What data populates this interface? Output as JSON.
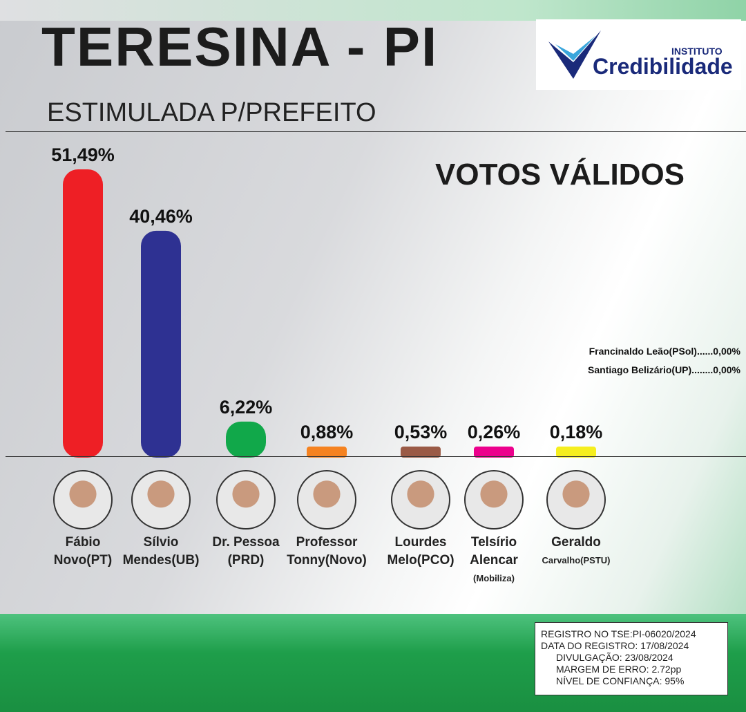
{
  "header": {
    "title": "TERESINA - PI",
    "subtitle": "ESTIMULADA P/PREFEITO",
    "logo_top": "INSTITUTO",
    "logo_main": "Credibilidade",
    "section": "VOTOS VÁLIDOS"
  },
  "minor_candidates": [
    "Francinaldo Leão(PSol)......0,00%",
    "Santiago Belizário(UP)........0,00%"
  ],
  "chart_data": {
    "type": "bar",
    "title": "ESTIMULADA P/PREFEITO - VOTOS VÁLIDOS",
    "ylim": [
      0,
      55
    ],
    "categories": [
      "Fábio Novo(PT)",
      "Sílvio Mendes(UB)",
      "Dr. Pessoa (PRD)",
      "Professor Tonny(Novo)",
      "Lourdes Melo(PCO)",
      "Telsírio Alencar (Mobiliza)",
      "Geraldo Carvalho(PSTU)"
    ],
    "values": [
      51.49,
      40.46,
      6.22,
      0.88,
      0.53,
      0.26,
      0.18
    ],
    "labels": [
      "51,49%",
      "40,46%",
      "6,22%",
      "0,88%",
      "0,53%",
      "0,26%",
      "0,18%"
    ],
    "colors": [
      "#ee1f25",
      "#2e3192",
      "#11a84a",
      "#f58220",
      "#9a5a46",
      "#ec008c",
      "#f5ee1e"
    ]
  },
  "candidates": [
    {
      "l1": "Fábio",
      "l2": "Novo(PT)",
      "l3": ""
    },
    {
      "l1": "Sílvio",
      "l2": "Mendes(UB)",
      "l3": ""
    },
    {
      "l1": "Dr. Pessoa",
      "l2": "(PRD)",
      "l3": ""
    },
    {
      "l1": "Professor",
      "l2": "Tonny(Novo)",
      "l3": ""
    },
    {
      "l1": "Lourdes",
      "l2": "Melo(PCO)",
      "l3": ""
    },
    {
      "l1": "Telsírio",
      "l2": "Alencar",
      "l3": "(Mobiliza)"
    },
    {
      "l1": "Geraldo",
      "l2": "Carvalho(PSTU)",
      "l3": ""
    }
  ],
  "registration": [
    "REGISTRO NO TSE:PI-06020/2024",
    "DATA DO REGISTRO: 17/08/2024",
    "DIVULGAÇÃO: 23/08/2024",
    "MARGEM DE ERRO: 2.72pp",
    "NÍVEL DE CONFIANÇA: 95%"
  ]
}
